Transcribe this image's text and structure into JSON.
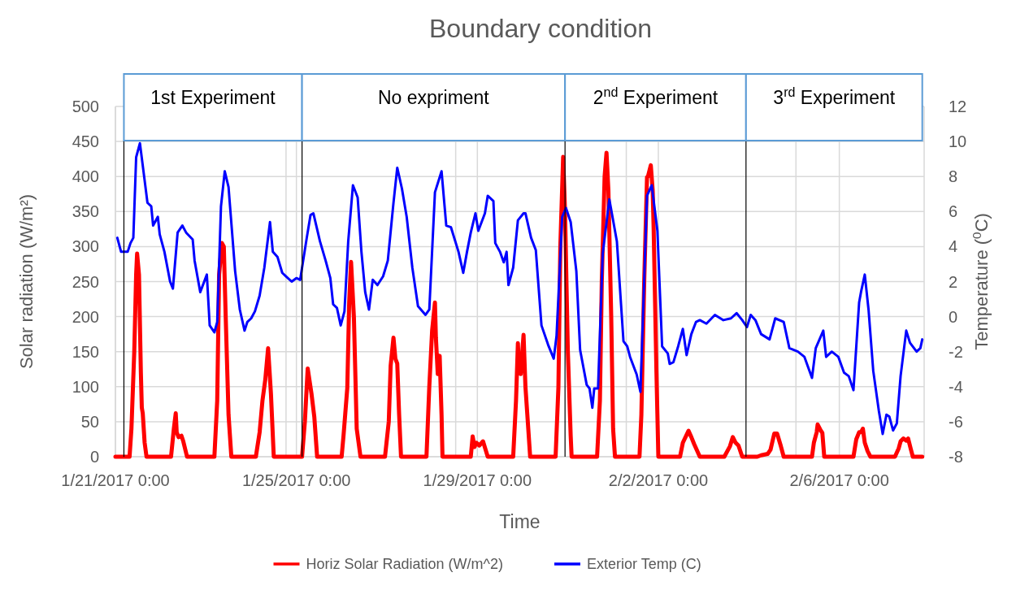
{
  "chart_data": {
    "type": "line",
    "title": "Boundary condition",
    "xlabel": "Time",
    "ylabel": "Solar radiation (W/m²)",
    "y2label": "Temperature ($^{0}$C)",
    "xlim": [
      "2017-01-21T00:00",
      "2017-02-07T21:00"
    ],
    "xticks": [
      {
        "value": "2017-01-21T00:00",
        "label": "1/21/2017 0:00"
      },
      {
        "value": "2017-01-24T18:30",
        "label": null
      },
      {
        "value": "2017-01-25T00:00",
        "label": "1/25/2017 0:00"
      },
      {
        "value": "2017-01-28T12:30",
        "label": null
      },
      {
        "value": "2017-01-29T00:00",
        "label": "1/29/2017 0:00"
      },
      {
        "value": "2017-02-01T07:00",
        "label": null
      },
      {
        "value": "2017-02-02T00:00",
        "label": "2/2/2017 0:00"
      },
      {
        "value": "2017-02-05T01:00",
        "label": null
      },
      {
        "value": "2017-02-06T00:00",
        "label": "2/6/2017 0:00"
      }
    ],
    "ylim": [
      0,
      500
    ],
    "yticks": [
      0,
      50,
      100,
      150,
      200,
      250,
      300,
      350,
      400,
      450,
      500
    ],
    "y2lim": [
      -8,
      12
    ],
    "y2ticks": [
      -8,
      -6,
      -4,
      -2,
      0,
      2,
      4,
      6,
      8,
      10,
      12
    ],
    "grid": true,
    "legend": "bottom",
    "bands": [
      {
        "axis": "x",
        "from": "2017-01-21T04:30",
        "to": "2017-01-25T03:00",
        "label": "1st Experiment",
        "color": "#5b9bd5"
      },
      {
        "axis": "x",
        "from": "2017-01-25T03:00",
        "to": "2017-01-30T22:30",
        "label": "No expriment",
        "color": "#5b9bd5"
      },
      {
        "axis": "x",
        "from": "2017-01-30T22:30",
        "to": "2017-02-03T22:30",
        "label": "2$^{nd}$ Experiment",
        "color": "#5b9bd5"
      },
      {
        "axis": "x",
        "from": "2017-02-03T22:30",
        "to": "2017-02-07T20:00",
        "label": "3$^{rd}$ Experiment",
        "color": "#5b9bd5"
      }
    ],
    "series": [
      {
        "name": "Horiz Solar Radiation (W/m^2)",
        "color": "#ff0000",
        "x": [
          "2017-01-21T00:00",
          "2017-01-21T07:30",
          "2017-01-21T08:30",
          "2017-01-21T10:00",
          "2017-01-21T11:00",
          "2017-01-21T11:30",
          "2017-01-21T12:30",
          "2017-01-21T13:30",
          "2017-01-21T14:00",
          "2017-01-21T14:30",
          "2017-01-21T15:30",
          "2017-01-21T16:30",
          "2017-01-22T05:30",
          "2017-01-22T07:00",
          "2017-01-22T08:00",
          "2017-01-22T08:30",
          "2017-01-22T09:30",
          "2017-01-22T11:00",
          "2017-01-22T12:00",
          "2017-01-22T14:00",
          "2017-01-23T04:30",
          "2017-01-23T06:00",
          "2017-01-23T07:00",
          "2017-01-23T08:30",
          "2017-01-23T09:30",
          "2017-01-23T10:30",
          "2017-01-23T12:00",
          "2017-01-23T13:30",
          "2017-01-24T02:30",
          "2017-01-24T04:30",
          "2017-01-24T06:00",
          "2017-01-24T07:30",
          "2017-01-24T09:00",
          "2017-01-24T10:30",
          "2017-01-24T12:00",
          "2017-01-25T03:00",
          "2017-01-25T04:30",
          "2017-01-25T06:00",
          "2017-01-25T08:00",
          "2017-01-25T09:30",
          "2017-01-25T11:00",
          "2017-01-26T00:00",
          "2017-01-26T01:00",
          "2017-01-26T03:00",
          "2017-01-26T04:00",
          "2017-01-26T05:00",
          "2017-01-26T06:30",
          "2017-01-26T08:00",
          "2017-01-26T09:00",
          "2017-01-26T10:00",
          "2017-01-26T23:00",
          "2017-01-27T01:00",
          "2017-01-27T02:00",
          "2017-01-27T03:30",
          "2017-01-27T04:30",
          "2017-01-27T05:30",
          "2017-01-27T06:30",
          "2017-01-27T07:30",
          "2017-01-27T21:00",
          "2017-01-27T22:30",
          "2017-01-28T00:00",
          "2017-01-28T01:30",
          "2017-01-28T02:00",
          "2017-01-28T03:00",
          "2017-01-28T04:00",
          "2017-01-28T05:00",
          "2017-01-28T05:30",
          "2017-01-28T20:30",
          "2017-01-28T21:30",
          "2017-01-28T22:30",
          "2017-01-28T23:30",
          "2017-01-29T01:00",
          "2017-01-29T03:00",
          "2017-01-29T05:30",
          "2017-01-29T19:00",
          "2017-01-29T20:30",
          "2017-01-29T21:30",
          "2017-01-29T22:00",
          "2017-01-29T23:00",
          "2017-01-30T00:30",
          "2017-01-30T01:30",
          "2017-01-30T04:00",
          "2017-01-30T17:30",
          "2017-01-30T19:00",
          "2017-01-30T20:00",
          "2017-01-30T21:30",
          "2017-01-30T22:30",
          "2017-01-31T00:00",
          "2017-01-31T01:30",
          "2017-01-31T02:00",
          "2017-01-31T15:30",
          "2017-01-31T17:00",
          "2017-01-31T18:00",
          "2017-01-31T19:30",
          "2017-01-31T20:30",
          "2017-01-31T21:30",
          "2017-01-31T23:00",
          "2017-02-01T00:00",
          "2017-02-01T01:00",
          "2017-02-01T14:00",
          "2017-02-01T15:00",
          "2017-02-01T16:30",
          "2017-02-01T18:00",
          "2017-02-01T18:30",
          "2017-02-01T20:00",
          "2017-02-01T21:00",
          "2017-02-01T21:30",
          "2017-02-01T23:00",
          "2017-02-02T00:00",
          "2017-02-02T11:30",
          "2017-02-02T13:00",
          "2017-02-02T16:00",
          "2017-02-02T17:30",
          "2017-02-02T19:00",
          "2017-02-02T22:00",
          "2017-02-03T11:00",
          "2017-02-03T14:00",
          "2017-02-03T15:30",
          "2017-02-03T17:00",
          "2017-02-03T18:30",
          "2017-02-03T20:30",
          "2017-02-04T04:30",
          "2017-02-04T06:30",
          "2017-02-04T10:00",
          "2017-02-04T11:30",
          "2017-02-04T13:30",
          "2017-02-04T15:00",
          "2017-02-04T17:00",
          "2017-02-04T18:30",
          "2017-02-05T09:30",
          "2017-02-05T10:30",
          "2017-02-05T12:00",
          "2017-02-05T12:30",
          "2017-02-05T14:00",
          "2017-02-05T15:00",
          "2017-02-05T16:00",
          "2017-02-06T07:30",
          "2017-02-06T09:00",
          "2017-02-06T10:30",
          "2017-02-06T11:30",
          "2017-02-06T12:30",
          "2017-02-06T13:30",
          "2017-02-06T15:00",
          "2017-02-06T16:30",
          "2017-02-07T05:30",
          "2017-02-07T07:30",
          "2017-02-07T08:30",
          "2017-02-07T10:00",
          "2017-02-07T11:30",
          "2017-02-07T12:30",
          "2017-02-07T14:00",
          "2017-02-07T15:00",
          "2017-02-07T20:00"
        ],
        "values": [
          0,
          0,
          40,
          150,
          260,
          290,
          260,
          120,
          70,
          62,
          20,
          0,
          0,
          40,
          62,
          35,
          28,
          30,
          22,
          0,
          0,
          80,
          260,
          305,
          300,
          200,
          60,
          0,
          0,
          35,
          80,
          110,
          155,
          90,
          0,
          0,
          50,
          126,
          90,
          57,
          0,
          0,
          30,
          98,
          220,
          278,
          200,
          40,
          20,
          0,
          0,
          50,
          130,
          170,
          140,
          133,
          60,
          0,
          0,
          100,
          180,
          220,
          170,
          118,
          144,
          60,
          0,
          0,
          29,
          14,
          20,
          16,
          22,
          0,
          0,
          80,
          162,
          130,
          118,
          174,
          100,
          0,
          0,
          100,
          300,
          428,
          350,
          150,
          30,
          0,
          0,
          80,
          250,
          400,
          434,
          380,
          200,
          40,
          0,
          0,
          60,
          250,
          399,
          400,
          416,
          380,
          327,
          120,
          0,
          0,
          20,
          37,
          28,
          18,
          0,
          0,
          15,
          28,
          20,
          16,
          0,
          0,
          2,
          4,
          10,
          33,
          33,
          15,
          0,
          0,
          20,
          35,
          46,
          38,
          34,
          0,
          0,
          25,
          35,
          35,
          40,
          20,
          8,
          0,
          0,
          12,
          22,
          26,
          23,
          26,
          10,
          0,
          0
        ]
      },
      {
        "name": "Exterior Temp (C)",
        "color": "#0000ff",
        "axis": "y2",
        "x": [
          "2017-01-21T01:00",
          "2017-01-21T03:00",
          "2017-01-21T06:30",
          "2017-01-21T08:00",
          "2017-01-21T09:30",
          "2017-01-21T11:00",
          "2017-01-21T13:00",
          "2017-01-21T15:00",
          "2017-01-21T17:00",
          "2017-01-21T19:00",
          "2017-01-21T20:00",
          "2017-01-21T22:30",
          "2017-01-21T23:30",
          "2017-01-22T02:00",
          "2017-01-22T05:00",
          "2017-01-22T06:30",
          "2017-01-22T09:00",
          "2017-01-22T11:30",
          "2017-01-22T13:30",
          "2017-01-22T17:00",
          "2017-01-22T18:00",
          "2017-01-22T21:00",
          "2017-01-23T00:30",
          "2017-01-23T02:00",
          "2017-01-23T04:30",
          "2017-01-23T06:00",
          "2017-01-23T08:00",
          "2017-01-23T10:00",
          "2017-01-23T12:00",
          "2017-01-23T15:30",
          "2017-01-23T18:00",
          "2017-01-23T20:30",
          "2017-01-23T22:00",
          "2017-01-24T00:00",
          "2017-01-24T02:00",
          "2017-01-24T04:30",
          "2017-01-24T07:00",
          "2017-01-24T10:00",
          "2017-01-24T11:30",
          "2017-01-24T14:00",
          "2017-01-24T16:30",
          "2017-01-24T18:30",
          "2017-01-24T21:30",
          "2017-01-25T00:00",
          "2017-01-25T02:00",
          "2017-01-25T05:30",
          "2017-01-25T07:30",
          "2017-01-25T09:00",
          "2017-01-25T12:30",
          "2017-01-25T15:30",
          "2017-01-25T18:00",
          "2017-01-25T19:30",
          "2017-01-25T21:30",
          "2017-01-25T23:30",
          "2017-01-26T01:30",
          "2017-01-26T03:30",
          "2017-01-26T06:00",
          "2017-01-26T08:30",
          "2017-01-26T10:30",
          "2017-01-26T12:30",
          "2017-01-26T14:30",
          "2017-01-26T16:30",
          "2017-01-26T19:00",
          "2017-01-26T22:00",
          "2017-01-27T00:30",
          "2017-01-27T03:30",
          "2017-01-27T05:30",
          "2017-01-27T08:00",
          "2017-01-27T10:30",
          "2017-01-27T13:30",
          "2017-01-27T16:30",
          "2017-01-27T20:30",
          "2017-01-27T22:30",
          "2017-01-28T01:30",
          "2017-01-28T05:00",
          "2017-01-28T07:30",
          "2017-01-28T10:00",
          "2017-01-28T14:00",
          "2017-01-28T16:30",
          "2017-01-28T18:30",
          "2017-01-28T20:30",
          "2017-01-28T23:00",
          "2017-01-29T00:30",
          "2017-01-29T04:00",
          "2017-01-29T05:30",
          "2017-01-29T08:30",
          "2017-01-29T09:30",
          "2017-01-29T12:00",
          "2017-01-29T14:00",
          "2017-01-29T15:30",
          "2017-01-29T16:30",
          "2017-01-29T19:00",
          "2017-01-29T21:30",
          "2017-01-30T00:30",
          "2017-01-30T01:30",
          "2017-01-30T04:30",
          "2017-01-30T07:00",
          "2017-01-30T10:00",
          "2017-01-30T13:30",
          "2017-01-30T16:30",
          "2017-01-30T18:00",
          "2017-01-30T21:00",
          "2017-01-30T23:00",
          "2017-01-31T01:30",
          "2017-01-31T04:30",
          "2017-01-31T06:30",
          "2017-01-31T10:00",
          "2017-01-31T11:30",
          "2017-01-31T13:00",
          "2017-01-31T14:00",
          "2017-01-31T16:00",
          "2017-01-31T18:30",
          "2017-01-31T22:00",
          "2017-02-01T02:00",
          "2017-02-01T05:30",
          "2017-02-01T07:30",
          "2017-02-01T09:00",
          "2017-02-01T12:30",
          "2017-02-01T14:30",
          "2017-02-01T18:00",
          "2017-02-01T20:30",
          "2017-02-01T23:30",
          "2017-02-02T02:00",
          "2017-02-02T05:00",
          "2017-02-02T06:00",
          "2017-02-02T08:00",
          "2017-02-02T10:30",
          "2017-02-02T13:00",
          "2017-02-02T15:00",
          "2017-02-02T17:30",
          "2017-02-02T20:00",
          "2017-02-02T22:00",
          "2017-02-03T01:30",
          "2017-02-03T06:00",
          "2017-02-03T10:30",
          "2017-02-03T14:30",
          "2017-02-03T17:30",
          "2017-02-03T20:30",
          "2017-02-03T23:00",
          "2017-02-04T01:00",
          "2017-02-04T03:30",
          "2017-02-04T06:30",
          "2017-02-04T11:00",
          "2017-02-04T14:00",
          "2017-02-04T18:30",
          "2017-02-04T21:30",
          "2017-02-05T02:00",
          "2017-02-05T05:30",
          "2017-02-05T09:30",
          "2017-02-05T11:30",
          "2017-02-05T15:30",
          "2017-02-05T17:00",
          "2017-02-05T20:00",
          "2017-02-05T23:30",
          "2017-02-06T02:30",
          "2017-02-06T05:00",
          "2017-02-06T07:30",
          "2017-02-06T10:30",
          "2017-02-06T11:30",
          "2017-02-06T13:30",
          "2017-02-06T15:30",
          "2017-02-06T18:00",
          "2017-02-06T21:00",
          "2017-02-06T23:00",
          "2017-02-07T01:00",
          "2017-02-07T02:30",
          "2017-02-07T04:30",
          "2017-02-07T06:30",
          "2017-02-07T08:30",
          "2017-02-07T11:30",
          "2017-02-07T13:30",
          "2017-02-07T17:00",
          "2017-02-07T19:00",
          "2017-02-07T20:00"
        ],
        "values": [
          4.5,
          3.7,
          3.7,
          4.2,
          4.5,
          9.1,
          9.9,
          8.2,
          6.5,
          6.3,
          5.2,
          5.7,
          4.7,
          3.7,
          2.0,
          1.6,
          4.8,
          5.2,
          4.8,
          4.4,
          3.2,
          1.4,
          2.4,
          -0.5,
          -0.9,
          -0.3,
          6.3,
          8.3,
          7.4,
          2.6,
          0.4,
          -0.8,
          -0.3,
          -0.1,
          0.3,
          1.2,
          2.8,
          5.4,
          3.7,
          3.4,
          2.5,
          2.3,
          2.0,
          2.2,
          2.1,
          4.5,
          5.8,
          5.9,
          4.3,
          3.2,
          2.2,
          0.7,
          0.5,
          -0.5,
          0.3,
          4.3,
          7.5,
          6.8,
          3.7,
          1.4,
          0.4,
          2.1,
          1.8,
          2.3,
          3.2,
          6.5,
          8.5,
          7.3,
          5.7,
          2.8,
          0.6,
          0.1,
          0.4,
          7.1,
          8.3,
          5.2,
          5.1,
          3.7,
          2.5,
          3.7,
          4.8,
          5.9,
          4.9,
          5.9,
          6.9,
          6.6,
          4.2,
          3.7,
          3.1,
          3.7,
          1.8,
          2.8,
          5.5,
          5.9,
          5.9,
          4.5,
          3.8,
          -0.5,
          -1.6,
          -2.4,
          -1.1,
          5.7,
          6.2,
          5.4,
          2.6,
          -1.9,
          -3.9,
          -4.1,
          -5.2,
          -4.1,
          -4.1,
          3.6,
          6.7,
          4.3,
          -1.4,
          -1.7,
          -2.3,
          -3.3,
          -4.3,
          6.9,
          7.5,
          4.9,
          -1.7,
          -2.1,
          -2.7,
          -2.6,
          -1.7,
          -0.7,
          -2.2,
          -1.0,
          -0.3,
          -0.2,
          -0.4,
          0.1,
          -0.2,
          -0.1,
          0.2,
          -0.2,
          -0.6,
          0.1,
          -0.2,
          -1.0,
          -1.3,
          -0.1,
          -0.3,
          -1.8,
          -2.0,
          -2.3,
          -3.5,
          -1.8,
          -0.8,
          -2.3,
          -2.0,
          -2.3,
          -3.2,
          -3.4,
          -4.2,
          0.8,
          1.4,
          2.4,
          0.4,
          -3.1,
          -5.4,
          -6.7,
          -5.6,
          -5.7,
          -6.5,
          -6.1,
          -3.4,
          -0.8,
          -1.5,
          -2.0,
          -1.8,
          -1.3
        ]
      }
    ]
  }
}
